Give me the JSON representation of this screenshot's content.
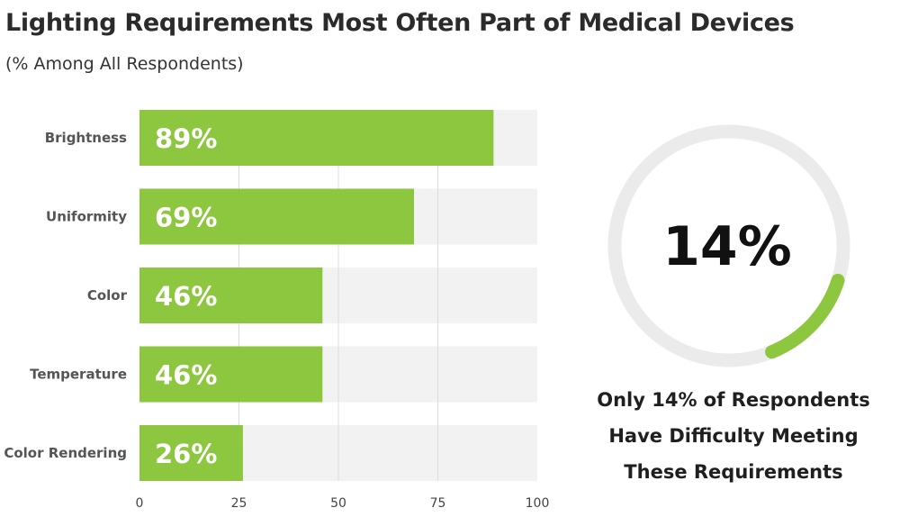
{
  "chart_data": [
    {
      "type": "bar",
      "orientation": "horizontal",
      "title": "Lighting Requirements Most Often Part of Medical Devices",
      "subtitle": "(% Among All Respondents)",
      "categories": [
        "Brightness",
        "Uniformity",
        "Color",
        "Temperature",
        "Color Rendering"
      ],
      "values": [
        89,
        69,
        46,
        46,
        26
      ],
      "value_labels": [
        "89%",
        "69%",
        "46%",
        "46%",
        "26%"
      ],
      "xlim": [
        0,
        100
      ],
      "xticks": [
        0,
        25,
        50,
        75,
        100
      ],
      "grid": true,
      "colors": {
        "bar": "#8dc63f",
        "track": "#f2f2f2",
        "grid": "#dcdcdc"
      }
    },
    {
      "type": "gauge",
      "value": 14,
      "max": 100,
      "value_label": "14%",
      "caption_lines": [
        "Only 14% of Respondents",
        "Have Difficulty Meeting",
        "These Requirements"
      ],
      "colors": {
        "fill": "#8dc63f",
        "track": "#ebebeb"
      }
    }
  ]
}
